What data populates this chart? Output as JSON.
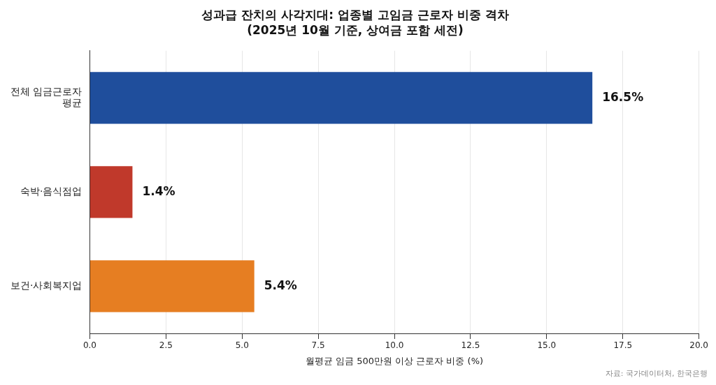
{
  "chart_data": {
    "type": "bar",
    "orientation": "horizontal",
    "title": "성과급 잔치의 사각지대: 업종별 고임금 근로자 비중 격차",
    "subtitle": "(2025년 10월 기준, 상여금 포함 세전)",
    "xlabel": "월평균 임금 500만원 이상 근로자 비중 (%)",
    "categories": [
      "전체 임금근로자 평균",
      "숙박·음식점업",
      "보건·사회복지업"
    ],
    "values": [
      16.5,
      1.4,
      5.4
    ],
    "colors": [
      "#1f4e9c",
      "#c0392b",
      "#e67e22"
    ],
    "value_labels": [
      "16.5%",
      "1.4%",
      "5.4%"
    ],
    "xlim": [
      0,
      20
    ],
    "xticks": [
      {
        "value": 0,
        "label": "0.0"
      },
      {
        "value": 2.5,
        "label": "2.5"
      },
      {
        "value": 5,
        "label": "5.0"
      },
      {
        "value": 7.5,
        "label": "7.5"
      },
      {
        "value": 10,
        "label": "10.0"
      },
      {
        "value": 12.5,
        "label": "12.5"
      },
      {
        "value": 15,
        "label": "15.0"
      },
      {
        "value": 17.5,
        "label": "17.5"
      },
      {
        "value": 20,
        "label": "20.0"
      }
    ],
    "grid": "x",
    "legend": false,
    "annotations": [
      "자료: 국가데이터처, 한국은행"
    ]
  }
}
